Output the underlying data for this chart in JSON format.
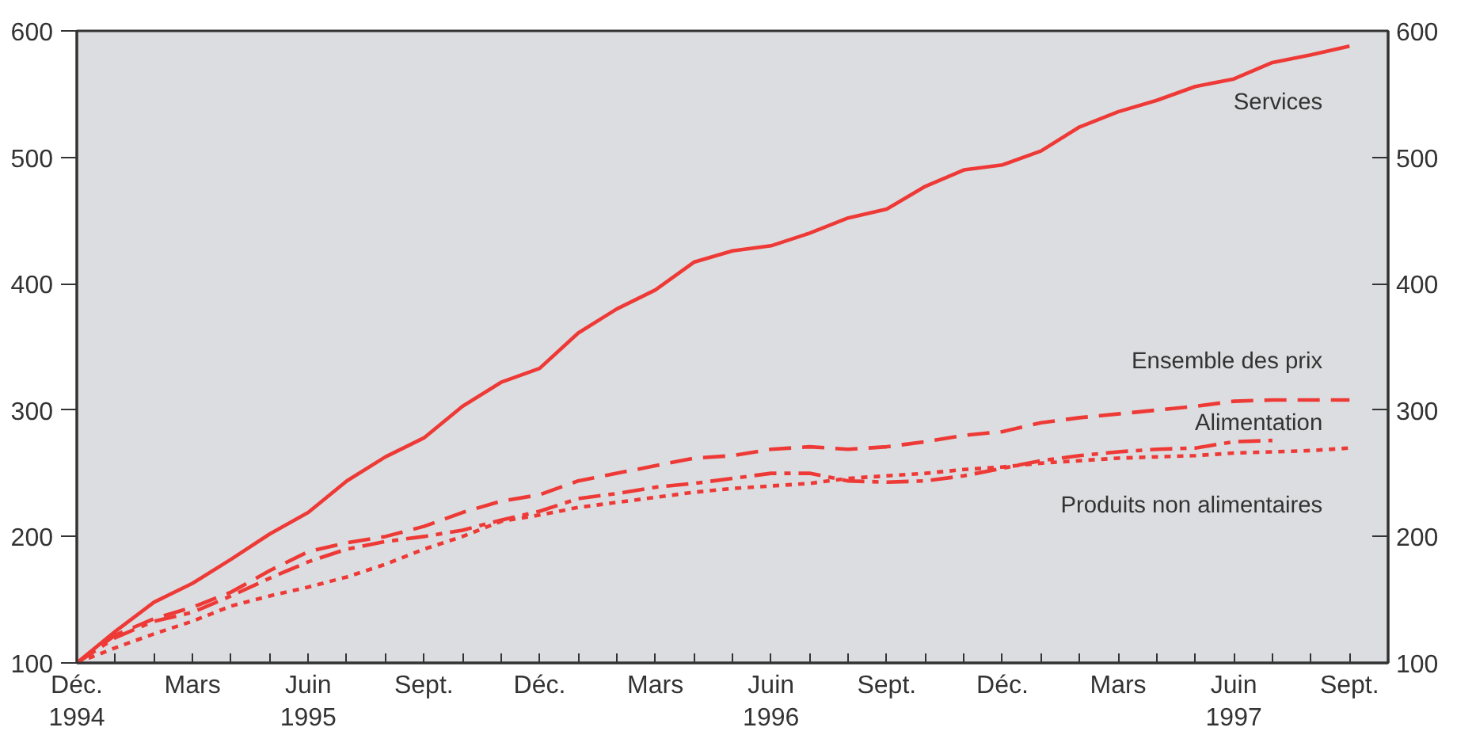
{
  "chart_data": {
    "type": "line",
    "x": [
      "1994-12",
      "1995-01",
      "1995-02",
      "1995-03",
      "1995-04",
      "1995-05",
      "1995-06",
      "1995-07",
      "1995-08",
      "1995-09",
      "1995-10",
      "1995-11",
      "1995-12",
      "1996-01",
      "1996-02",
      "1996-03",
      "1996-04",
      "1996-05",
      "1996-06",
      "1996-07",
      "1996-08",
      "1996-09",
      "1996-10",
      "1996-11",
      "1996-12",
      "1997-01",
      "1997-02",
      "1997-03",
      "1997-04",
      "1997-05",
      "1997-06",
      "1997-07",
      "1997-08",
      "1997-09"
    ],
    "series": [
      {
        "name": "Services",
        "color": "#ee3a37",
        "line_style": "solid",
        "values": [
          100,
          125,
          148,
          163,
          182,
          202,
          219,
          244,
          263,
          278,
          303,
          322,
          333,
          361,
          380,
          395,
          417,
          426,
          430,
          440,
          452,
          459,
          477,
          490,
          494,
          505,
          524,
          536,
          545,
          556,
          562,
          575,
          581,
          588
        ]
      },
      {
        "name": "Ensemble des prix",
        "color": "#ee3a37",
        "line_style": "dashed",
        "values": [
          100,
          122,
          135,
          144,
          156,
          173,
          188,
          195,
          200,
          208,
          219,
          228,
          233,
          244,
          250,
          256,
          262,
          264,
          269,
          271,
          269,
          271,
          275,
          280,
          283,
          290,
          294,
          297,
          300,
          303,
          307,
          308,
          308,
          308
        ]
      },
      {
        "name": "Alimentation",
        "color": "#ee3a37",
        "line_style": "dashdot",
        "values": [
          100,
          120,
          133,
          140,
          153,
          167,
          180,
          190,
          196,
          200,
          205,
          213,
          220,
          230,
          234,
          239,
          242,
          246,
          250,
          250,
          244,
          243,
          244,
          248,
          254,
          260,
          264,
          267,
          269,
          270,
          275,
          276,
          null,
          null
        ]
      },
      {
        "name": "Produits non alimentaires",
        "color": "#ee3a37",
        "line_style": "dotted",
        "values": [
          100,
          112,
          123,
          133,
          145,
          153,
          160,
          168,
          178,
          190,
          200,
          212,
          217,
          223,
          227,
          231,
          235,
          238,
          240,
          242,
          246,
          248,
          250,
          253,
          255,
          258,
          260,
          262,
          263,
          264,
          266,
          267,
          268,
          270
        ]
      }
    ],
    "xlim": [
      "1994-12",
      "1997-10"
    ],
    "xticks": [
      {
        "value": "1994-12",
        "label": "Déc.\n1994"
      },
      {
        "value": "1995-01",
        "label": null
      },
      {
        "value": "1995-02",
        "label": null
      },
      {
        "value": "1995-03",
        "label": "Mars"
      },
      {
        "value": "1995-04",
        "label": null
      },
      {
        "value": "1995-05",
        "label": null
      },
      {
        "value": "1995-06",
        "label": "Juin\n1995"
      },
      {
        "value": "1995-07",
        "label": null
      },
      {
        "value": "1995-08",
        "label": null
      },
      {
        "value": "1995-09",
        "label": "Sept."
      },
      {
        "value": "1995-10",
        "label": null
      },
      {
        "value": "1995-11",
        "label": null
      },
      {
        "value": "1995-12",
        "label": "Déc."
      },
      {
        "value": "1996-01",
        "label": null
      },
      {
        "value": "1996-02",
        "label": null
      },
      {
        "value": "1996-03",
        "label": "Mars"
      },
      {
        "value": "1996-04",
        "label": null
      },
      {
        "value": "1996-05",
        "label": null
      },
      {
        "value": "1996-06",
        "label": "Juin\n1996"
      },
      {
        "value": "1996-07",
        "label": null
      },
      {
        "value": "1996-08",
        "label": null
      },
      {
        "value": "1996-09",
        "label": "Sept."
      },
      {
        "value": "1996-10",
        "label": null
      },
      {
        "value": "1996-11",
        "label": null
      },
      {
        "value": "1996-12",
        "label": "Déc."
      },
      {
        "value": "1997-01",
        "label": null
      },
      {
        "value": "1997-02",
        "label": null
      },
      {
        "value": "1997-03",
        "label": "Mars"
      },
      {
        "value": "1997-04",
        "label": null
      },
      {
        "value": "1997-05",
        "label": null
      },
      {
        "value": "1997-06",
        "label": "Juin\n1997"
      },
      {
        "value": "1997-07",
        "label": null
      },
      {
        "value": "1997-08",
        "label": null
      },
      {
        "value": "1997-09",
        "label": "Sept."
      }
    ],
    "ylim": [
      100,
      600
    ],
    "yticks": [
      100,
      200,
      300,
      400,
      500,
      600
    ],
    "y2lim": [
      100,
      600
    ],
    "y2ticks": [
      100,
      200,
      300,
      400,
      500,
      600
    ],
    "grid": false,
    "marker": "none"
  }
}
